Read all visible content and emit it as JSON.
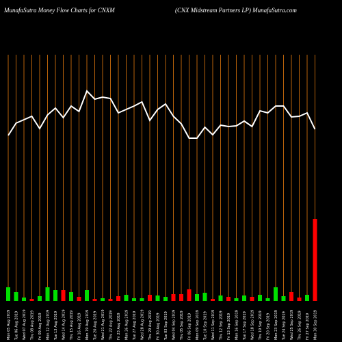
{
  "chart_data": [
    {
      "type": "line",
      "title": "MunafaSutra  Money Flow  Charts for CNXM",
      "subtitle": "(CNX  Midstream Partners LP) MunafaSutra.com",
      "categories": [
        "Mon 05 Aug 2019",
        "Tue 06 Aug 2019",
        "Wed 07 Aug 2019",
        "Thu 08 Aug 2019",
        "Fri 09 Aug 2019",
        "Mon 12 Aug 2019",
        "Tue 13 Aug 2019",
        "Wed 14 Aug 2019",
        "Thu 15 Aug 2019",
        "Fri 16 Aug 2019",
        "Mon 19 Aug 2019",
        "Tue 20 Aug 2019",
        "Wed 21 Aug 2019",
        "Thu 22 Aug 2019",
        "Fri 23 Aug 2019",
        "Mon 26 Aug 2019",
        "Tue 27 Aug 2019",
        "Wed 28 Aug 2019",
        "Thu 29 Aug 2019",
        "Fri 30 Aug 2019",
        "Tue 03 Sep 2019",
        "Wed 04 Sep 2019",
        "Thu 05 Sep 2019",
        "Fri 06 Sep 2019",
        "Mon 09 Sep 2019",
        "Tue 10 Sep 2019",
        "Wed 11 Sep 2019",
        "Thu 12 Sep 2019",
        "Fri 13 Sep 2019",
        "Mon 16 Sep 2019",
        "Tue 17 Sep 2019",
        "Wed 18 Sep 2019",
        "Thu 19 Sep 2019",
        "Fri 20 Sep 2019",
        "Mon 23 Sep 2019",
        "Tue 24 Sep 2019",
        "Wed 25 Sep 2019",
        "Thu 26 Sep 2019",
        "Fri 27 Sep 2019",
        "Mon 30 Sep 2019"
      ],
      "values": [
        242,
        260,
        265,
        270,
        252,
        272,
        282,
        268,
        285,
        277,
        307,
        295,
        298,
        296,
        275,
        280,
        285,
        291,
        264,
        280,
        288,
        270,
        259,
        238,
        238,
        254,
        243,
        257,
        255,
        256,
        263,
        255,
        278,
        275,
        285,
        285,
        269,
        270,
        275,
        251
      ],
      "color": "#ffffff",
      "grid_color": "#b8620a",
      "ylim": [
        0,
        360
      ]
    },
    {
      "type": "bar",
      "values": [
        20,
        13,
        5,
        3,
        7,
        20,
        16,
        16,
        13,
        6,
        16,
        3,
        4,
        3,
        7,
        9,
        4,
        4,
        9,
        8,
        6,
        10,
        10,
        17,
        10,
        12,
        3,
        8,
        6,
        4,
        8,
        6,
        9,
        4,
        20,
        7,
        13,
        5,
        9,
        120
      ],
      "colors": [
        "#00e000",
        "#00e000",
        "#00e000",
        "#ff0000",
        "#00e000",
        "#00e000",
        "#00e000",
        "#ff0000",
        "#00e000",
        "#ff0000",
        "#00e000",
        "#ff0000",
        "#00e000",
        "#ff0000",
        "#ff0000",
        "#00e000",
        "#00e000",
        "#00e000",
        "#ff0000",
        "#00e000",
        "#00e000",
        "#ff0000",
        "#ff0000",
        "#ff0000",
        "#00e000",
        "#00e000",
        "#ff0000",
        "#00e000",
        "#ff0000",
        "#00e000",
        "#00e000",
        "#ff0000",
        "#00e000",
        "#00e000",
        "#00e000",
        "#00e000",
        "#ff0000",
        "#ff0000",
        "#00e000",
        "#ff0000"
      ],
      "ylim": [
        0,
        360
      ]
    }
  ]
}
